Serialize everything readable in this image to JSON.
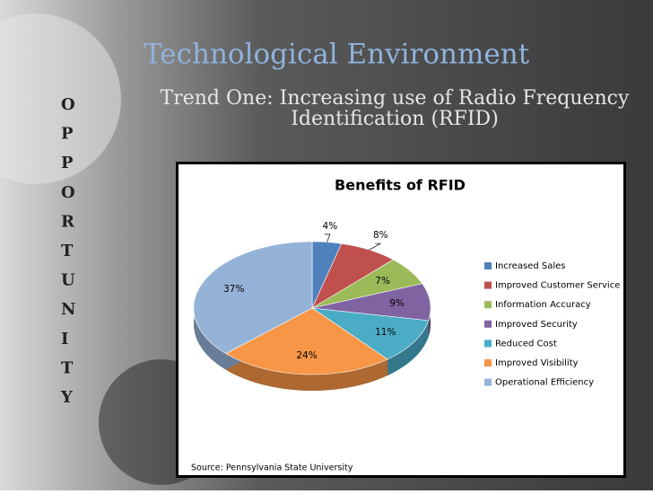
{
  "slide": {
    "title": "Technological Environment",
    "subtitle_lines": [
      "Trend One: Increasing use of Radio Frequency",
      "Identification (RFID)"
    ],
    "side_letters": [
      "O",
      "P",
      "P",
      "O",
      "R",
      "T",
      "U",
      "N",
      "I",
      "T",
      "Y"
    ],
    "source": "Source: Pennsylvania State University"
  },
  "chart_data": {
    "type": "pie",
    "title": "Benefits of RFID",
    "categories": [
      "Increased Sales",
      "Improved Customer Service",
      "Information Accuracy",
      "Improved Security",
      "Reduced Cost",
      "Improved Visibility",
      "Operational Efficiency"
    ],
    "values": [
      4,
      8,
      7,
      9,
      11,
      24,
      37
    ],
    "value_labels": [
      "4%",
      "8%",
      "7%",
      "9%",
      "11%",
      "24%",
      "37%"
    ],
    "colors": [
      "#4f81bd",
      "#c0504d",
      "#9bbb59",
      "#8064a2",
      "#4bacc6",
      "#f79646",
      "#95b3d7"
    ],
    "legend": "right"
  }
}
